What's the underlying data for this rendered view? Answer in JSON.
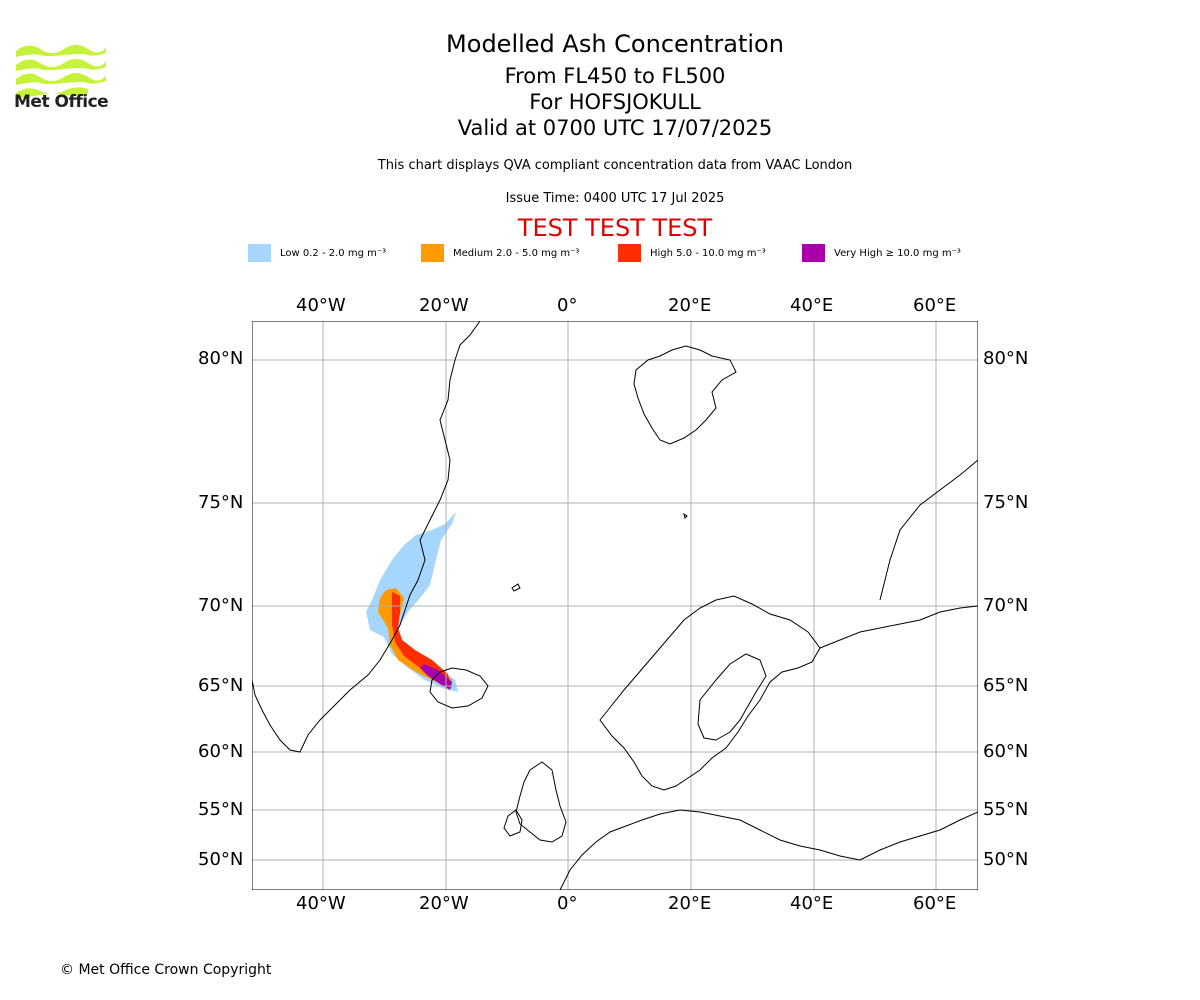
{
  "header": {
    "logo_text": "Met Office",
    "title": "Modelled Ash Concentration",
    "flight_levels": "From FL450 to FL500",
    "volcano": "For HOFSJOKULL",
    "valid_time": "Valid at 0700 UTC 17/07/2025",
    "description": "This chart displays QVA compliant concentration data from VAAC London",
    "issue_time": "Issue Time: 0400 UTC 17 Jul 2025",
    "test_banner": "TEST TEST TEST"
  },
  "legend": [
    {
      "label": "Low 0.2 - 2.0 mg m⁻³",
      "color": "#a6d6fc"
    },
    {
      "label": "Medium 2.0 - 5.0 mg m⁻³",
      "color": "#ff9a00"
    },
    {
      "label": "High 5.0 - 10.0 mg m⁻³",
      "color": "#ff2e00"
    },
    {
      "label": "Very High  ≥  10.0 mg m⁻³",
      "color": "#aa00aa"
    }
  ],
  "map": {
    "longitude_labels": [
      "40°W",
      "20°W",
      "0°",
      "20°E",
      "40°E",
      "60°E"
    ],
    "latitude_labels": [
      "80°N",
      "75°N",
      "70°N",
      "65°N",
      "60°N",
      "55°N",
      "50°N"
    ],
    "gridlines": true
  },
  "footer": {
    "copyright": "© Met Office Crown Copyright"
  }
}
